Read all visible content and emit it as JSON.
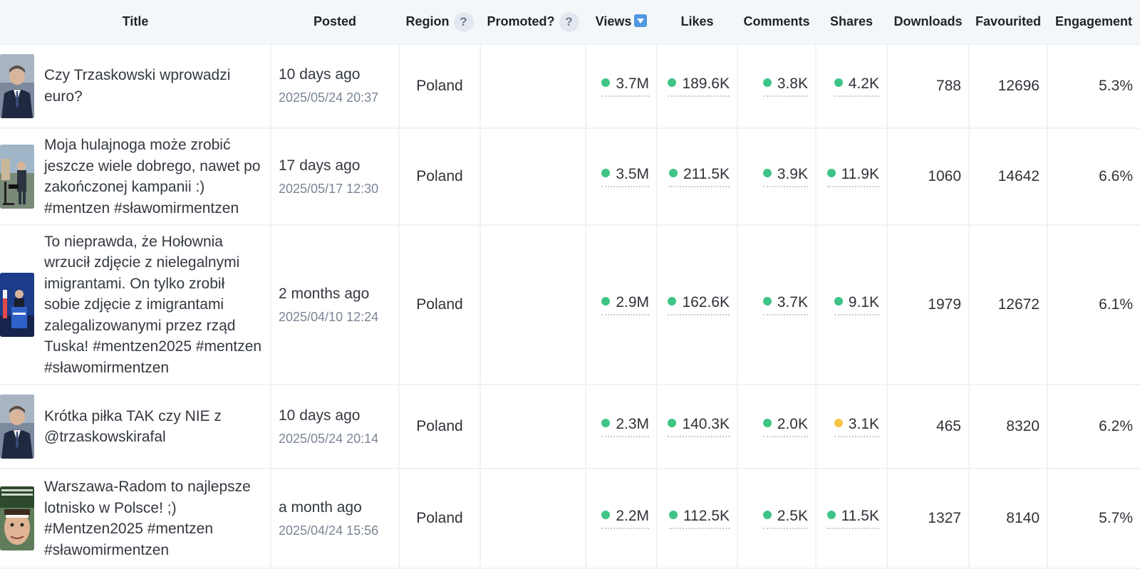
{
  "columns": {
    "title": "Title",
    "posted": "Posted",
    "region": "Region",
    "region_help": "?",
    "promoted": "Promoted?",
    "promoted_help": "?",
    "views": "Views",
    "likes": "Likes",
    "comments": "Comments",
    "shares": "Shares",
    "downloads": "Downloads",
    "favourited": "Favourited",
    "engagement": "Engagement"
  },
  "colors": {
    "green": "#3ec485",
    "yellow": "#f6c445",
    "sort": "#4f97e0"
  },
  "rows": [
    {
      "title": "Czy Trzaskowski wprowadzi euro?",
      "posted_relative": "10 days ago",
      "posted_date": "2025/05/24 20:37",
      "region": "Poland",
      "promoted": "",
      "views": "3.7M",
      "views_status": "green",
      "likes": "189.6K",
      "likes_status": "green",
      "comments": "3.8K",
      "comments_status": "green",
      "shares": "4.2K",
      "shares_status": "green",
      "downloads": "788",
      "favourited": "12696",
      "engagement": "5.3%",
      "thumb": "portrait-suit"
    },
    {
      "title": "Moja hulajnoga może zrobić jeszcze wiele dobrego, nawet po zakończonej kampanii :) #mentzen #sławomirmentzen",
      "posted_relative": "17 days ago",
      "posted_date": "2025/05/17 12:30",
      "region": "Poland",
      "promoted": "",
      "views": "3.5M",
      "views_status": "green",
      "likes": "211.5K",
      "likes_status": "green",
      "comments": "3.9K",
      "comments_status": "green",
      "shares": "11.9K",
      "shares_status": "green",
      "downloads": "1060",
      "favourited": "14642",
      "engagement": "6.6%",
      "thumb": "street-scooter"
    },
    {
      "title": "To nieprawda, że Hołownia wrzucił zdjęcie z nielegalnymi imigrantami. On tylko zrobił sobie zdjęcie z imigrantami zalegalizowanymi przez rząd Tuska! #mentzen2025 #mentzen #sławomirmentzen",
      "posted_relative": "2 months ago",
      "posted_date": "2025/04/10 12:24",
      "region": "Poland",
      "promoted": "",
      "views": "2.9M",
      "views_status": "green",
      "likes": "162.6K",
      "likes_status": "green",
      "comments": "3.7K",
      "comments_status": "green",
      "shares": "9.1K",
      "shares_status": "green",
      "downloads": "1979",
      "favourited": "12672",
      "engagement": "6.1%",
      "thumb": "podium-blue"
    },
    {
      "title": "Krótka piłka TAK czy NIE z @trzaskowskirafal",
      "posted_relative": "10 days ago",
      "posted_date": "2025/05/24 20:14",
      "region": "Poland",
      "promoted": "",
      "views": "2.3M",
      "views_status": "green",
      "likes": "140.3K",
      "likes_status": "green",
      "comments": "2.0K",
      "comments_status": "green",
      "shares": "3.1K",
      "shares_status": "yellow",
      "downloads": "465",
      "favourited": "8320",
      "engagement": "6.2%",
      "thumb": "portrait-suit"
    },
    {
      "title": "Warszawa-Radom to najlepsze lotnisko w Polsce! ;) #Mentzen2025 #mentzen #sławomirmentzen",
      "posted_relative": "a month ago",
      "posted_date": "2025/04/24 15:56",
      "region": "Poland",
      "promoted": "",
      "views": "2.2M",
      "views_status": "green",
      "likes": "112.5K",
      "likes_status": "green",
      "comments": "2.5K",
      "comments_status": "green",
      "shares": "11.5K",
      "shares_status": "green",
      "downloads": "1327",
      "favourited": "8140",
      "engagement": "5.7%",
      "thumb": "face-closeup"
    }
  ]
}
